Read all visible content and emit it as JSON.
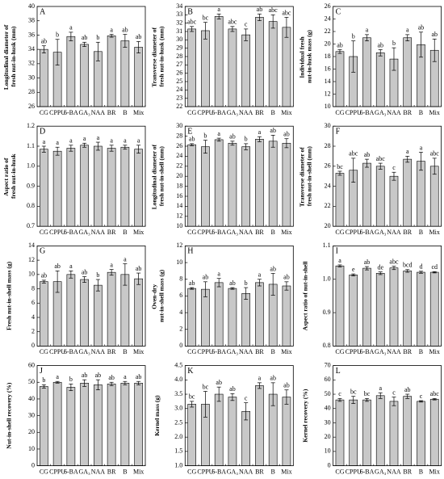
{
  "chart_data": [
    {
      "type": "bar",
      "label": "A",
      "ylabel": "Longitudinal diameter of fresh nut-in-husk (mm)",
      "categories": [
        "CG",
        "CPPU",
        "6-BA",
        "GA₃",
        "NAA",
        "BR",
        "B",
        "Mix"
      ],
      "values": [
        34.0,
        33.6,
        35.8,
        34.7,
        33.7,
        35.9,
        35.2,
        34.3
      ],
      "errors": [
        0.5,
        1.8,
        0.6,
        0.3,
        1.3,
        0.2,
        0.9,
        0.8
      ],
      "letters": [
        "ab",
        "b",
        "a",
        "ab",
        "b",
        "a",
        "ab",
        "ab"
      ],
      "ylim": [
        26,
        40
      ],
      "yticks": [
        26,
        28,
        30,
        32,
        34,
        36,
        38,
        40
      ],
      "color": "#c8c8c8"
    },
    {
      "type": "bar",
      "label": "B",
      "ylabel": "Transverse diameter of fresh nut-in-husk (mm)",
      "categories": [
        "CG",
        "CPPU",
        "6-BA",
        "GA₃",
        "NAA",
        "BR",
        "B",
        "Mix"
      ],
      "values": [
        31.3,
        31.1,
        32.8,
        31.3,
        30.6,
        32.7,
        32.2,
        31.5
      ],
      "errors": [
        0.3,
        1.0,
        0.3,
        0.3,
        0.7,
        0.4,
        0.8,
        1.2
      ],
      "letters": [
        "abc",
        "bc",
        "a",
        "abc",
        "c",
        "ab",
        "abc",
        "abc"
      ],
      "ylim": [
        22,
        34
      ],
      "yticks": [
        22,
        23,
        24,
        25,
        26,
        27,
        28,
        29,
        30,
        31,
        32,
        33,
        34
      ],
      "color": "#c8c8c8"
    },
    {
      "type": "bar",
      "label": "C",
      "ylabel": "Individual fresh nut-in-husk mass (g)",
      "categories": [
        "CG",
        "CPPU",
        "6-BA",
        "GA₃",
        "NAA",
        "BR",
        "B",
        "Mix"
      ],
      "values": [
        18.8,
        18.0,
        21.0,
        18.6,
        17.6,
        21.0,
        19.9,
        19.0
      ],
      "errors": [
        0.3,
        2.5,
        0.5,
        0.5,
        1.8,
        0.5,
        2.0,
        1.8
      ],
      "letters": [
        "ab",
        "b",
        "a",
        "ab",
        "b",
        "a",
        "ab",
        "ab"
      ],
      "ylim": [
        10,
        26
      ],
      "yticks": [
        10,
        12,
        14,
        16,
        18,
        20,
        22,
        24,
        26
      ],
      "color": "#c8c8c8"
    },
    {
      "type": "bar",
      "label": "D",
      "ylabel": "Aspect ratio of fresh nut-in-husk",
      "categories": [
        "CG",
        "CPPU",
        "6-BA",
        "GA₃",
        "NAA",
        "BR",
        "B",
        "Mix"
      ],
      "values": [
        1.085,
        1.075,
        1.09,
        1.105,
        1.1,
        1.09,
        1.095,
        1.085
      ],
      "errors": [
        0.015,
        0.02,
        0.015,
        0.01,
        0.02,
        0.015,
        0.01,
        0.02
      ],
      "letters": [
        "a",
        "a",
        "a",
        "a",
        "a",
        "a",
        "a",
        "a"
      ],
      "ylim": [
        0.7,
        1.2
      ],
      "yticks": [
        0.7,
        0.8,
        0.9,
        {
          "value": 1,
          "label": "1.0"
        },
        1.1,
        1.2
      ],
      "color": "#c8c8c8"
    },
    {
      "type": "bar",
      "label": "E",
      "ylabel": "Longitudinal diameter of fresh nut-in-shell (mm)",
      "categories": [
        "CG",
        "CPPU",
        "6-BA",
        "GA₃",
        "NAA",
        "BR",
        "B",
        "Mix"
      ],
      "values": [
        26.3,
        25.9,
        27.3,
        26.6,
        25.9,
        27.4,
        27.0,
        26.6
      ],
      "errors": [
        0.2,
        1.3,
        0.3,
        0.4,
        0.6,
        0.5,
        1.2,
        0.9
      ],
      "letters": [
        "ab",
        "b",
        "a",
        "ab",
        "b",
        "a",
        "ab",
        "ab"
      ],
      "ylim": [
        10,
        30
      ],
      "yticks": [
        10,
        12,
        14,
        16,
        18,
        20,
        22,
        24,
        26,
        28,
        30
      ],
      "color": "#c8c8c8"
    },
    {
      "type": "bar",
      "label": "F",
      "ylabel": "Transverse diameter of fresh nut-in-shell (mm)",
      "categories": [
        "CG",
        "CPPU",
        "6-BA",
        "GA₃",
        "NAA",
        "BR",
        "B",
        "Mix"
      ],
      "values": [
        25.3,
        25.6,
        26.3,
        26.0,
        25.0,
        26.7,
        26.5,
        26.0
      ],
      "errors": [
        0.2,
        1.2,
        0.4,
        0.3,
        0.4,
        0.3,
        0.9,
        0.8
      ],
      "letters": [
        "bc",
        "abc",
        "ab",
        "abc",
        "c",
        "a",
        "a",
        "abc"
      ],
      "ylim": [
        20,
        30
      ],
      "yticks": [
        20,
        22,
        24,
        26,
        28,
        30
      ],
      "color": "#c8c8c8"
    },
    {
      "type": "bar",
      "label": "G",
      "ylabel": "Fresh nut-in-shell mass (g)",
      "categories": [
        "CG",
        "CPPU",
        "6-BA",
        "GA₃",
        "NAA",
        "BR",
        "B",
        "Mix"
      ],
      "values": [
        9.0,
        9.0,
        10.0,
        9.3,
        8.5,
        10.3,
        10.0,
        9.4
      ],
      "errors": [
        0.2,
        1.5,
        0.5,
        0.4,
        0.8,
        0.4,
        1.5,
        0.8
      ],
      "letters": [
        "ab",
        "ab",
        "a",
        "ab",
        "b",
        "a",
        "a",
        "ab"
      ],
      "ylim": [
        0,
        14
      ],
      "yticks": [
        0,
        2,
        4,
        6,
        8,
        10,
        12,
        14
      ],
      "color": "#c8c8c8"
    },
    {
      "type": "bar",
      "label": "H",
      "ylabel": "Oven-dry nut-in-shell mass (g)",
      "categories": [
        "CG",
        "CPPU",
        "6-BA",
        "GA₃",
        "NAA",
        "BR",
        "B",
        "Mix"
      ],
      "values": [
        6.9,
        6.8,
        7.6,
        6.9,
        6.3,
        7.6,
        7.4,
        7.2
      ],
      "errors": [
        0.1,
        0.9,
        0.5,
        0.1,
        0.7,
        0.4,
        1.3,
        0.5
      ],
      "letters": [
        "ab",
        "ab",
        "a",
        "ab",
        "b",
        "a",
        "ab",
        "ab"
      ],
      "ylim": [
        0,
        12
      ],
      "yticks": [
        0,
        2,
        4,
        6,
        8,
        10,
        12
      ],
      "color": "#c8c8c8"
    },
    {
      "type": "bar",
      "label": "I",
      "ylabel": "Aspect ratio of nut-in-shell",
      "categories": [
        "CG",
        "CPPU",
        "6-BA",
        "GA₃",
        "NAA",
        "BR",
        "B",
        "Mix"
      ],
      "values": [
        1.04,
        1.013,
        1.033,
        1.018,
        1.034,
        1.025,
        1.021,
        1.021
      ],
      "errors": [
        0.003,
        0.003,
        0.005,
        0.004,
        0.005,
        0.004,
        0.003,
        0.002
      ],
      "letters": [
        "a",
        "e",
        "ab",
        "de",
        "abc",
        "bcd",
        "d",
        "cd"
      ],
      "ylim": [
        0.8,
        1.1
      ],
      "yticks": [
        0.8,
        0.9,
        {
          "value": 1,
          "label": "1.0"
        },
        1.1
      ],
      "color": "#c8c8c8"
    },
    {
      "type": "bar",
      "label": "J",
      "ylabel": "Nut-in-shell recovery (%)",
      "categories": [
        "CG",
        "CPPU",
        "6-BA",
        "GA₃",
        "NAA",
        "BR",
        "B",
        "Mix"
      ],
      "values": [
        47.5,
        50,
        47,
        49.5,
        48.5,
        49,
        49.5,
        49.5
      ],
      "errors": [
        1,
        0.5,
        2,
        2,
        3,
        1,
        1,
        1
      ],
      "letters": [
        "b",
        "a",
        "b",
        "ab",
        "ab",
        "ab",
        "a",
        "ab"
      ],
      "ylim": [
        0,
        60
      ],
      "yticks": [
        0,
        10,
        20,
        30,
        40,
        50,
        60
      ],
      "color": "#c8c8c8"
    },
    {
      "type": "bar",
      "label": "K",
      "ylabel": "Kernel mass (g)",
      "categories": [
        "CG",
        "CPPU",
        "6-BA",
        "GA₃",
        "NAA",
        "BR",
        "B",
        "Mix"
      ],
      "values": [
        3.15,
        3.15,
        3.5,
        3.4,
        2.9,
        3.8,
        3.5,
        3.4
      ],
      "errors": [
        0.1,
        0.45,
        0.25,
        0.12,
        0.3,
        0.1,
        0.4,
        0.25
      ],
      "letters": [
        "bc",
        "bc",
        "ab",
        "ab",
        "c",
        "a",
        "ab",
        "ab"
      ],
      "ylim": [
        1,
        4.5
      ],
      "yticks": [
        {
          "value": 1,
          "label": "1.0"
        },
        1.5,
        {
          "value": 2,
          "label": "2.0"
        },
        2.5,
        {
          "value": 3,
          "label": "3.0"
        },
        3.5,
        {
          "value": 4,
          "label": "4.0"
        },
        4.5
      ],
      "color": "#c8c8c8"
    },
    {
      "type": "bar",
      "label": "L",
      "ylabel": "Kernel recovery (%)",
      "categories": [
        "CG",
        "CPPU",
        "6-BA",
        "GA₃",
        "NAA",
        "BR",
        "B",
        "Mix"
      ],
      "values": [
        46,
        46,
        46,
        49,
        45,
        48.5,
        45,
        46.5
      ],
      "errors": [
        1,
        2.5,
        1,
        2,
        3,
        1.5,
        0.5,
        0.5
      ],
      "letters": [
        "c",
        "bc",
        "bc",
        "a",
        "c",
        "ab",
        "c",
        "abc"
      ],
      "ylim": [
        0,
        70
      ],
      "yticks": [
        0,
        10,
        20,
        30,
        40,
        50,
        60,
        70
      ],
      "color": "#c8c8c8"
    }
  ]
}
